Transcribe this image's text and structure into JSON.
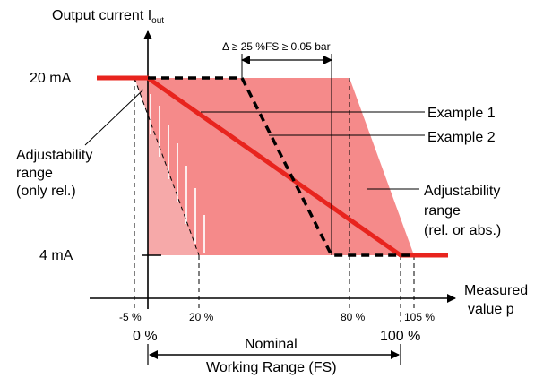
{
  "y_axis": {
    "label": "Output current I",
    "subscript": "out"
  },
  "x_axis": {
    "label_line1": "Measured",
    "label_line2": "value p"
  },
  "levels": {
    "high": "20 mA",
    "low": "4 mA"
  },
  "ticks": {
    "minus5": "-5 %",
    "zero": "0 %",
    "p20": "20 %",
    "p80": "80 %",
    "p100": "100 %",
    "p105": "105 %"
  },
  "delta_note": "Δ ≥ 25 %FS ≥ 0.05 bar",
  "examples": {
    "example1": "Example 1",
    "example2": "Example 2"
  },
  "adj_rel": {
    "line1": "Adjustability",
    "line2": "range",
    "line3": "(only rel.)"
  },
  "adj_abs": {
    "line1": "Adjustability",
    "line2": "range",
    "line3": "(rel. or abs.)"
  },
  "working_range": {
    "line1": "Nominal",
    "line2": "Working Range (FS)"
  },
  "colors": {
    "fill": "#f58a8a",
    "fill_stripes": "#f7b8b8",
    "accent_red": "#e8241e",
    "ink": "#000000"
  }
}
